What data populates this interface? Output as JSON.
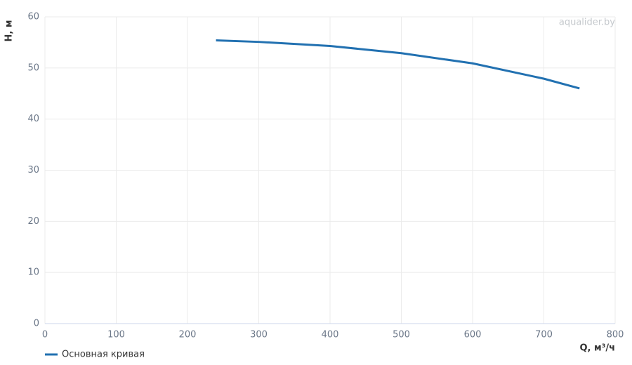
{
  "chart_data": {
    "type": "line",
    "x_label": "Q, м³/ч",
    "y_label": "H, м",
    "watermark": "aqualider.by",
    "x": [
      240,
      300,
      400,
      500,
      600,
      700,
      750
    ],
    "series": [
      {
        "name": "Основная кривая",
        "color": "#2271b1",
        "values": [
          55.4,
          55.1,
          54.3,
          52.9,
          50.9,
          47.9,
          46.0
        ]
      }
    ],
    "xlim": [
      0,
      800
    ],
    "xticks": [
      0,
      100,
      200,
      300,
      400,
      500,
      600,
      700,
      800
    ],
    "ylim": [
      0,
      60
    ],
    "yticks": [
      0,
      10,
      20,
      30,
      40,
      50,
      60
    ],
    "grid": true
  }
}
